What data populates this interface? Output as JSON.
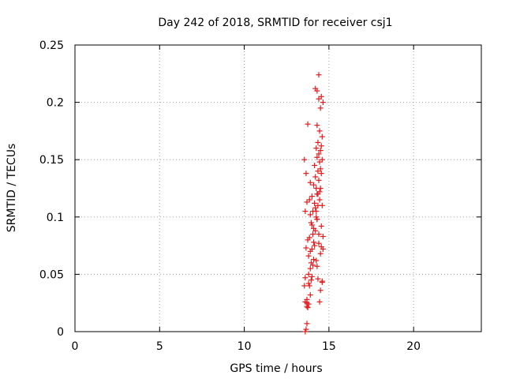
{
  "chart_data": {
    "type": "scatter",
    "title": "Day 242 of 2018, SRMTID for receiver csj1",
    "xlabel": "GPS time / hours",
    "ylabel": "SRMTID / TECUs",
    "xlim": [
      0,
      24
    ],
    "ylim": [
      0,
      0.25
    ],
    "x_ticks": [
      0,
      5,
      10,
      15,
      20
    ],
    "x_tick_labels": [
      "0",
      "5",
      "10",
      "15",
      "20"
    ],
    "y_ticks": [
      0,
      0.05,
      0.1,
      0.15,
      0.2,
      0.25
    ],
    "y_tick_labels": [
      "0",
      "0.05",
      "0.1",
      "0.15",
      "0.2",
      "0.25"
    ],
    "grid": true,
    "marker": "+",
    "color": "#e41a1c",
    "series": [
      {
        "x": [
          13.6,
          13.65,
          13.7,
          13.7,
          13.6,
          13.7,
          13.75,
          13.8,
          13.7,
          13.9,
          13.85,
          13.8,
          13.95,
          14.0,
          13.8,
          13.9,
          14.05,
          13.95,
          14.1,
          13.8,
          13.9,
          14.0,
          14.15,
          14.1,
          13.75,
          13.85,
          14.05,
          14.2,
          14.1,
          14.0,
          13.95,
          14.3,
          14.25,
          13.9,
          14.05,
          14.2,
          14.35,
          14.15,
          13.85,
          14.0,
          14.3,
          14.45,
          14.25,
          14.1,
          13.9,
          14.4,
          14.2,
          14.55,
          14.35,
          14.5,
          14.15,
          14.45,
          14.6,
          14.3,
          14.4,
          14.5,
          14.25,
          14.55,
          14.35,
          14.6,
          14.45,
          14.3,
          14.5,
          14.65,
          14.4,
          14.55,
          14.3,
          14.2,
          14.4,
          14.5,
          14.6,
          14.35,
          14.45,
          14.25,
          14.5,
          14.65,
          14.4,
          14.55,
          14.3,
          14.6,
          14.45,
          14.35,
          14.5,
          14.25,
          14.65,
          14.4,
          14.55,
          14.3,
          14.6,
          13.6,
          13.55,
          13.65,
          13.6,
          13.7,
          13.65,
          13.55,
          13.75
        ],
        "y": [
          0.0,
          0.002,
          0.007,
          0.022,
          0.026,
          0.025,
          0.021,
          0.024,
          0.028,
          0.032,
          0.04,
          0.042,
          0.045,
          0.048,
          0.05,
          0.055,
          0.058,
          0.06,
          0.063,
          0.066,
          0.07,
          0.072,
          0.075,
          0.078,
          0.08,
          0.082,
          0.085,
          0.088,
          0.09,
          0.093,
          0.095,
          0.098,
          0.1,
          0.102,
          0.105,
          0.108,
          0.11,
          0.112,
          0.115,
          0.118,
          0.12,
          0.122,
          0.125,
          0.128,
          0.13,
          0.132,
          0.135,
          0.138,
          0.14,
          0.142,
          0.145,
          0.148,
          0.15,
          0.152,
          0.155,
          0.158,
          0.16,
          0.162,
          0.165,
          0.17,
          0.175,
          0.18,
          0.195,
          0.2,
          0.203,
          0.205,
          0.21,
          0.212,
          0.224,
          0.036,
          0.044,
          0.046,
          0.026,
          0.062,
          0.068,
          0.072,
          0.085,
          0.092,
          0.098,
          0.11,
          0.115,
          0.12,
          0.125,
          0.105,
          0.083,
          0.077,
          0.074,
          0.057,
          0.043,
          0.047,
          0.04,
          0.073,
          0.105,
          0.113,
          0.138,
          0.15,
          0.181
        ]
      }
    ]
  }
}
